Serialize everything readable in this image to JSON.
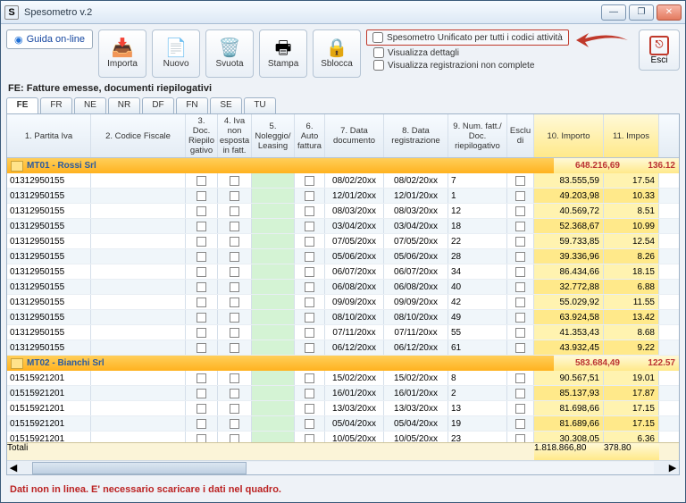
{
  "window": {
    "title": "Spesometro v.2"
  },
  "toolbar": {
    "guide": "Guida on-line",
    "buttons": {
      "importa": "Importa",
      "nuovo": "Nuovo",
      "svuota": "Svuota",
      "stampa": "Stampa",
      "sblocca": "Sblocca"
    },
    "esci": "Esci"
  },
  "checks": {
    "unificato": "Spesometro Unificato per tutti i codici attività",
    "dettagli": "Visualizza dettagli",
    "noncomplete": "Visualizza registrazioni non complete"
  },
  "section_title": "FE: Fatture emesse, documenti riepilogativi",
  "tabs": [
    "FE",
    "FR",
    "NE",
    "NR",
    "DF",
    "FN",
    "SE",
    "TU"
  ],
  "headers": {
    "c1": "1. Partita Iva",
    "c2": "2. Codice Fiscale",
    "c3": "3. Doc. Riepilo gativo",
    "c4": "4. Iva non esposta in fatt.",
    "c5": "5. Noleggio/ Leasing",
    "c6": "6. Auto fattura",
    "c7": "7. Data documento",
    "c8": "8. Data registrazione",
    "c9": "9. Num. fatt./ Doc. riepilogativo",
    "esc": "Esclu di",
    "c10": "10. Importo",
    "c11": "11. Impos"
  },
  "group1": {
    "label": "MT01 - Rossi Srl",
    "importo": "648.216,69",
    "impos": "136.12"
  },
  "rows1": [
    {
      "iva": "01312950155",
      "d7": "08/02/20xx",
      "d8": "08/02/20xx",
      "n": "7",
      "imp": "83.555,59",
      "imp2": "17.54"
    },
    {
      "iva": "01312950155",
      "d7": "12/01/20xx",
      "d8": "12/01/20xx",
      "n": "1",
      "imp": "49.203,98",
      "imp2": "10.33"
    },
    {
      "iva": "01312950155",
      "d7": "08/03/20xx",
      "d8": "08/03/20xx",
      "n": "12",
      "imp": "40.569,72",
      "imp2": "8.51"
    },
    {
      "iva": "01312950155",
      "d7": "03/04/20xx",
      "d8": "03/04/20xx",
      "n": "18",
      "imp": "52.368,67",
      "imp2": "10.99"
    },
    {
      "iva": "01312950155",
      "d7": "07/05/20xx",
      "d8": "07/05/20xx",
      "n": "22",
      "imp": "59.733,85",
      "imp2": "12.54"
    },
    {
      "iva": "01312950155",
      "d7": "05/06/20xx",
      "d8": "05/06/20xx",
      "n": "28",
      "imp": "39.336,96",
      "imp2": "8.26"
    },
    {
      "iva": "01312950155",
      "d7": "06/07/20xx",
      "d8": "06/07/20xx",
      "n": "34",
      "imp": "86.434,66",
      "imp2": "18.15"
    },
    {
      "iva": "01312950155",
      "d7": "06/08/20xx",
      "d8": "06/08/20xx",
      "n": "40",
      "imp": "32.772,88",
      "imp2": "6.88"
    },
    {
      "iva": "01312950155",
      "d7": "09/09/20xx",
      "d8": "09/09/20xx",
      "n": "42",
      "imp": "55.029,92",
      "imp2": "11.55"
    },
    {
      "iva": "01312950155",
      "d7": "08/10/20xx",
      "d8": "08/10/20xx",
      "n": "49",
      "imp": "63.924,58",
      "imp2": "13.42"
    },
    {
      "iva": "01312950155",
      "d7": "07/11/20xx",
      "d8": "07/11/20xx",
      "n": "55",
      "imp": "41.353,43",
      "imp2": "8.68"
    },
    {
      "iva": "01312950155",
      "d7": "06/12/20xx",
      "d8": "06/12/20xx",
      "n": "61",
      "imp": "43.932,45",
      "imp2": "9.22"
    }
  ],
  "group2": {
    "label": "MT02 - Bianchi Srl",
    "importo": "583.684,49",
    "impos": "122.57"
  },
  "rows2": [
    {
      "iva": "01515921201",
      "d7": "15/02/20xx",
      "d8": "15/02/20xx",
      "n": "8",
      "imp": "90.567,51",
      "imp2": "19.01"
    },
    {
      "iva": "01515921201",
      "d7": "16/01/20xx",
      "d8": "16/01/20xx",
      "n": "2",
      "imp": "85.137,93",
      "imp2": "17.87"
    },
    {
      "iva": "01515921201",
      "d7": "13/03/20xx",
      "d8": "13/03/20xx",
      "n": "13",
      "imp": "81.698,66",
      "imp2": "17.15"
    },
    {
      "iva": "01515921201",
      "d7": "05/04/20xx",
      "d8": "05/04/20xx",
      "n": "19",
      "imp": "81.689,66",
      "imp2": "17.15"
    },
    {
      "iva": "01515921201",
      "d7": "10/05/20xx",
      "d8": "10/05/20xx",
      "n": "23",
      "imp": "30.308,05",
      "imp2": "6.36"
    }
  ],
  "totals": {
    "label": "Totali",
    "importo": "1.818.866,80",
    "impos": "378.80"
  },
  "warning": "Dati non in linea. E' necessario scaricare i dati nel quadro."
}
